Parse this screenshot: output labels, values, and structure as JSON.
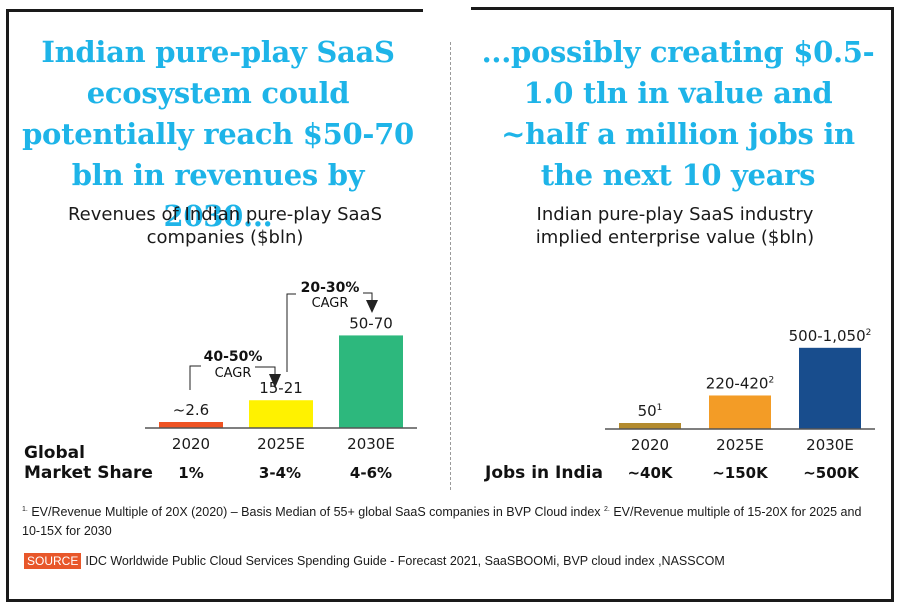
{
  "left_panel": {
    "headline": "Indian pure-play SaaS ecosystem could potentially reach $50-70 bln in revenues by 2030...",
    "headline_color": "#1eb4e8",
    "subtitle_line1": "Revenues of Indian pure-play SaaS",
    "subtitle_line2": "companies ($bln)",
    "row_label_line1": "Global",
    "row_label_line2": "Market Share",
    "row_values": [
      "1%",
      "3-4%",
      "4-6%"
    ],
    "cagr_annotations": [
      {
        "pct": "40-50%",
        "label": "CAGR",
        "from": "2020",
        "to": "2025E"
      },
      {
        "pct": "20-30%",
        "label": "CAGR",
        "from": "2025E",
        "to": "2030E"
      }
    ]
  },
  "right_panel": {
    "headline": "...possibly creating $0.5-1.0 tln in value and ~half a million jobs in the next 10 years",
    "headline_color": "#1eb4e8",
    "subtitle_line1": "Indian pure-play SaaS industry",
    "subtitle_line2": "implied enterprise value ($bln)",
    "row_label": "Jobs in India",
    "row_values": [
      "~40K",
      "~150K",
      "~500K"
    ]
  },
  "chart_data": [
    {
      "type": "bar",
      "title": "Revenues of Indian pure-play SaaS companies ($bln)",
      "categories": [
        "2020",
        "2025E",
        "2030E"
      ],
      "values": [
        2.6,
        18,
        60
      ],
      "value_labels": [
        "~2.6",
        "15-21",
        "50-70"
      ],
      "value_ranges": [
        [
          2.6,
          2.6
        ],
        [
          15,
          21
        ],
        [
          50,
          70
        ]
      ],
      "colors": [
        "#ef5323",
        "#fff200",
        "#2db87d"
      ],
      "xlabel": "",
      "ylabel": "",
      "ylim": [
        0,
        70
      ],
      "grid": false,
      "legend": "none"
    },
    {
      "type": "bar",
      "title": "Indian pure-play SaaS industry implied enterprise value ($bln)",
      "categories": [
        "2020",
        "2025E",
        "2030E"
      ],
      "values": [
        50,
        320,
        775
      ],
      "value_labels": [
        "50",
        "220-420",
        "500-1,050"
      ],
      "value_label_superscripts": [
        "1",
        "2",
        "2"
      ],
      "value_ranges": [
        [
          50,
          50
        ],
        [
          220,
          420
        ],
        [
          500,
          1050
        ]
      ],
      "colors": [
        "#b38b2e",
        "#f39c26",
        "#184d8d"
      ],
      "xlabel": "",
      "ylabel": "",
      "ylim": [
        0,
        1050
      ],
      "grid": false,
      "legend": "none"
    }
  ],
  "footnote": {
    "sup1": "1.",
    "text1": " EV/Revenue Multiple of 20X (2020) – Basis Median of 55+ global SaaS companies in BVP Cloud index ",
    "sup2": "2.",
    "text2": " EV/Revenue multiple of 15-20X for 2025 and 10-15X for 2030"
  },
  "source": {
    "badge": "SOURCE",
    "badge_color": "#e8572a",
    "text": "IDC Worldwide Public Cloud Services Spending Guide - Forecast 2021, SaaSBOOMi, BVP cloud index ,NASSCOM"
  }
}
